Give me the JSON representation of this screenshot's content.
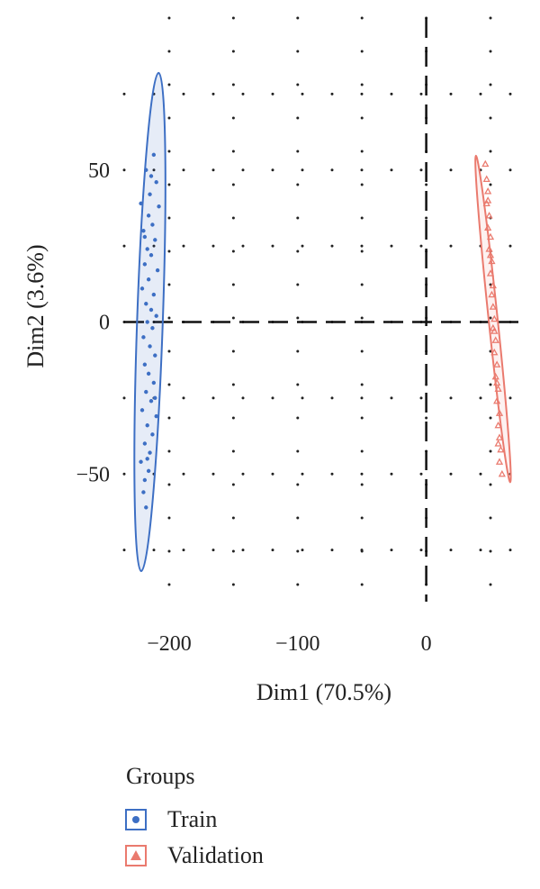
{
  "chart_data": {
    "type": "scatter",
    "xlabel": "Dim1 (70.5%)",
    "ylabel": "Dim2 (3.6%)",
    "xlim": [
      -235,
      78
    ],
    "ylim": [
      -92,
      100
    ],
    "xticks": [
      -200,
      -100,
      0
    ],
    "xtick_labels": [
      "−200",
      "−100",
      "0"
    ],
    "yticks": [
      -50,
      0,
      50
    ],
    "ytick_labels": [
      "−50",
      "0",
      "50"
    ],
    "grid": "dotted",
    "zero_lines": true,
    "legend": {
      "title": "Groups",
      "placement": "bottom-left"
    },
    "series": [
      {
        "name": "Train",
        "color": "#3d6fc4",
        "marker": "circle",
        "ellipse": {
          "cx": -215,
          "cy": 0,
          "rx": 10,
          "ry": 82,
          "angle_deg": 2
        },
        "points": [
          [
            -212,
            55
          ],
          [
            -218,
            50
          ],
          [
            -210,
            46
          ],
          [
            -215,
            42
          ],
          [
            -222,
            39
          ],
          [
            -208,
            38
          ],
          [
            -216,
            35
          ],
          [
            -213,
            32
          ],
          [
            -220,
            30
          ],
          [
            -211,
            27
          ],
          [
            -217,
            24
          ],
          [
            -214,
            22
          ],
          [
            -219,
            19
          ],
          [
            -209,
            17
          ],
          [
            -216,
            14
          ],
          [
            -221,
            11
          ],
          [
            -212,
            9
          ],
          [
            -218,
            6
          ],
          [
            -214,
            4
          ],
          [
            -210,
            2
          ],
          [
            -217,
            0
          ],
          [
            -213,
            -2
          ],
          [
            -220,
            -5
          ],
          [
            -215,
            -8
          ],
          [
            -211,
            -11
          ],
          [
            -219,
            -14
          ],
          [
            -216,
            -17
          ],
          [
            -212,
            -20
          ],
          [
            -218,
            -23
          ],
          [
            -214,
            -26
          ],
          [
            -221,
            -29
          ],
          [
            -210,
            -31
          ],
          [
            -217,
            -34
          ],
          [
            -213,
            -37
          ],
          [
            -219,
            -40
          ],
          [
            -215,
            -43
          ],
          [
            -222,
            -46
          ],
          [
            -216,
            -49
          ],
          [
            -219,
            -52
          ],
          [
            -220,
            -56
          ],
          [
            -218,
            -61
          ],
          [
            -214,
            48
          ],
          [
            -219,
            28
          ],
          [
            -211,
            -25
          ],
          [
            -217,
            -45
          ]
        ]
      },
      {
        "name": "Validation",
        "color": "#ea7a6e",
        "marker": "triangle",
        "ellipse": {
          "cx": 52,
          "cy": 1,
          "rx": 3.5,
          "ry": 54,
          "angle_deg": -6
        },
        "points": [
          [
            46,
            52
          ],
          [
            47,
            47
          ],
          [
            48,
            43
          ],
          [
            47,
            39
          ],
          [
            49,
            35
          ],
          [
            48,
            31
          ],
          [
            50,
            28
          ],
          [
            49,
            24
          ],
          [
            51,
            20
          ],
          [
            50,
            16
          ],
          [
            52,
            12
          ],
          [
            51,
            9
          ],
          [
            52,
            5
          ],
          [
            53,
            1
          ],
          [
            52,
            -2
          ],
          [
            54,
            -6
          ],
          [
            53,
            -10
          ],
          [
            55,
            -14
          ],
          [
            54,
            -18
          ],
          [
            56,
            -22
          ],
          [
            55,
            -26
          ],
          [
            57,
            -30
          ],
          [
            56,
            -34
          ],
          [
            57,
            -38
          ],
          [
            58,
            -42
          ],
          [
            57,
            -46
          ],
          [
            59,
            -50
          ],
          [
            48,
            40
          ],
          [
            50,
            22
          ],
          [
            53,
            -3
          ],
          [
            55,
            -20
          ],
          [
            56,
            -40
          ]
        ]
      }
    ]
  }
}
